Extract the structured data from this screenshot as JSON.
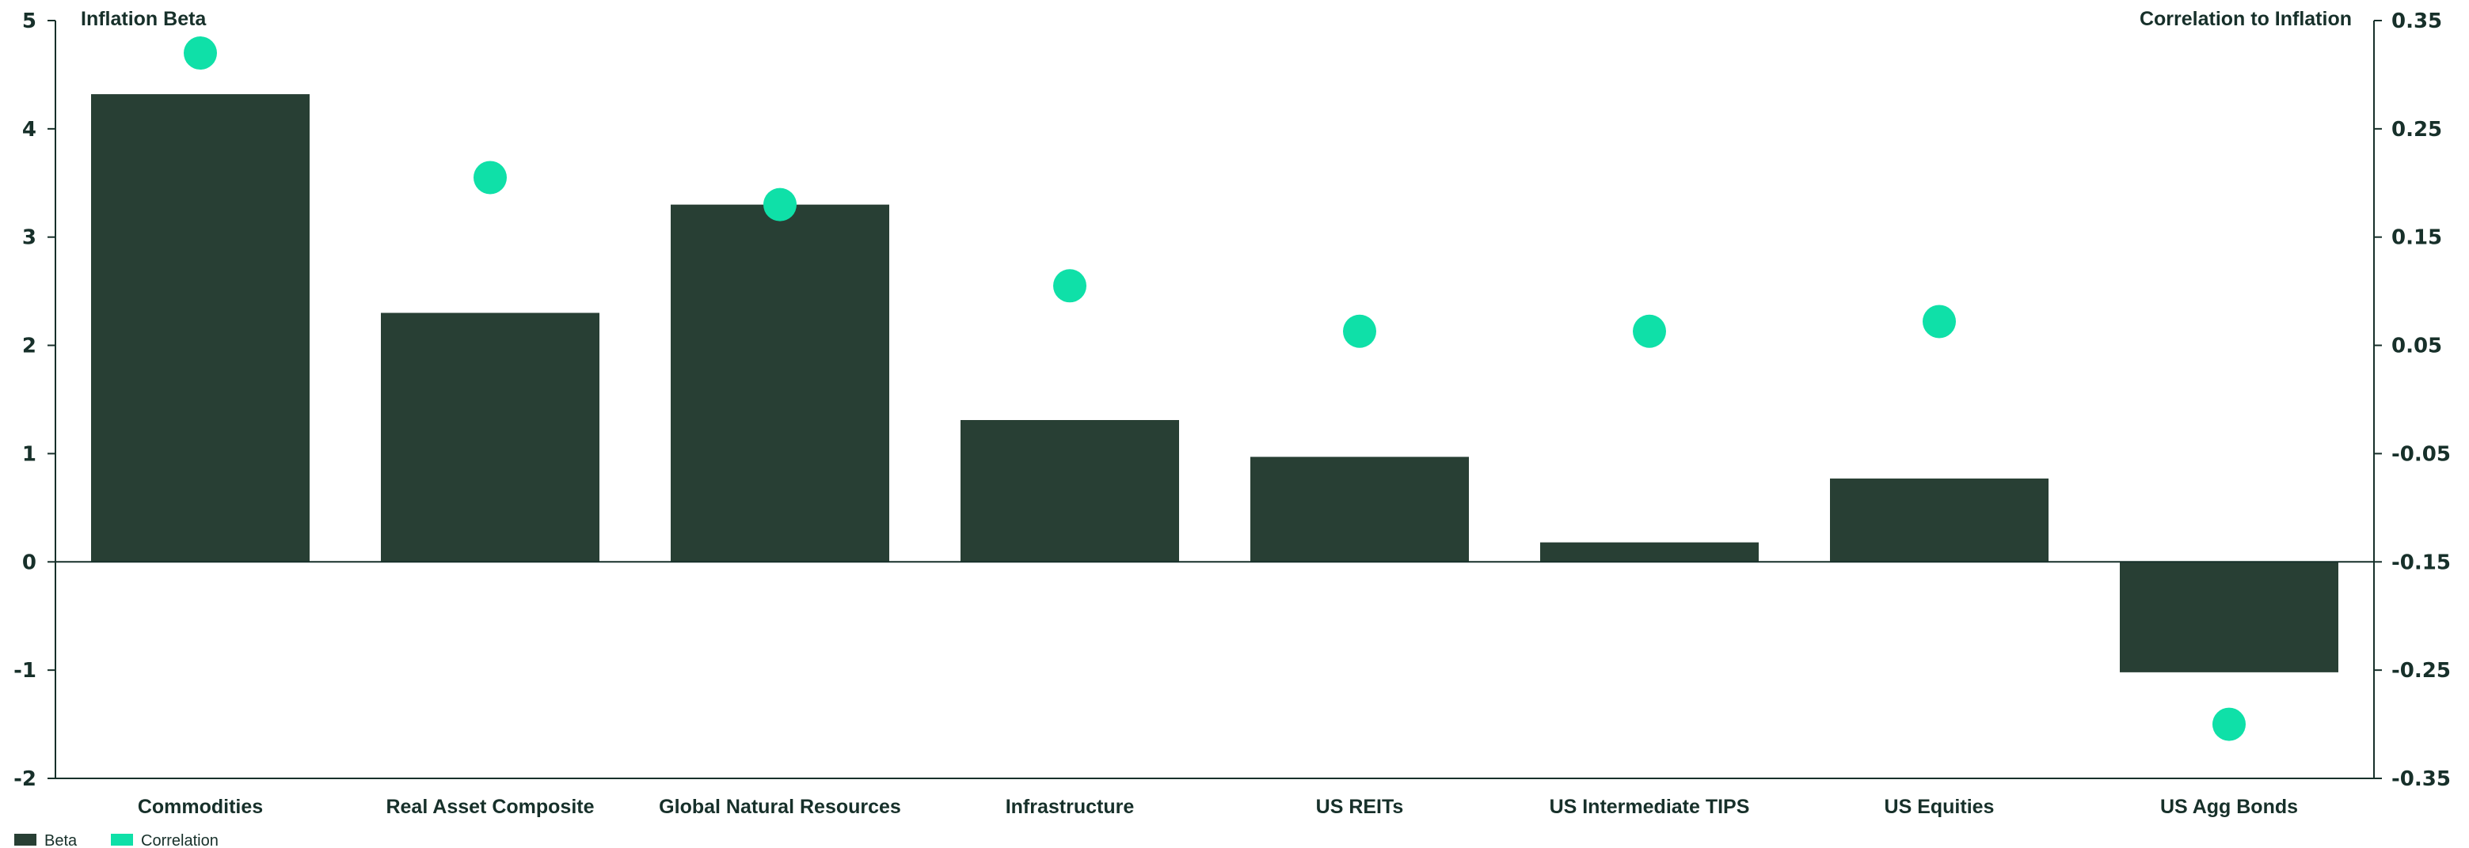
{
  "chart_data": {
    "type": "bar",
    "categories": [
      "Commodities",
      "Real Asset Composite",
      "Global Natural Resources",
      "Infrastructure",
      "US REITs",
      "US Intermediate TIPS",
      "US Equities",
      "US Agg Bonds"
    ],
    "series": [
      {
        "name": "Beta",
        "axis": "left",
        "type": "bar",
        "values": [
          4.32,
          2.3,
          3.3,
          1.31,
          0.97,
          0.18,
          0.77,
          -1.02
        ]
      },
      {
        "name": "Correlation",
        "axis": "right",
        "type": "scatter",
        "values": [
          0.32,
          0.205,
          0.18,
          0.105,
          0.063,
          0.063,
          0.072,
          -0.3
        ]
      }
    ],
    "ylabel": "Inflation Beta",
    "y2label": "Correlation to Inflation",
    "ylim": [
      -2,
      5
    ],
    "y2lim": [
      -0.35,
      0.35
    ],
    "yticks": [
      "5",
      "4",
      "3",
      "2",
      "1",
      "0",
      "-1",
      "-2"
    ],
    "y2ticks": [
      "0.35",
      "0.25",
      "0.15",
      "0.05",
      "-0.05",
      "-0.15",
      "-0.25",
      "-0.35"
    ],
    "legend_position": "bottom-left",
    "grid": false,
    "colors": {
      "bar": "#283f34",
      "dot": "#0fe0a8",
      "axis": "#17302a"
    }
  }
}
